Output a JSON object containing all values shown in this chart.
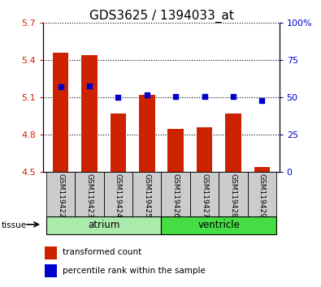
{
  "title": "GDS3625 / 1394033_at",
  "samples": [
    "GSM119422",
    "GSM119423",
    "GSM119424",
    "GSM119425",
    "GSM119426",
    "GSM119427",
    "GSM119428",
    "GSM119429"
  ],
  "transformed_counts": [
    5.46,
    5.44,
    4.97,
    5.12,
    4.85,
    4.86,
    4.97,
    4.54
  ],
  "percentile_ranks": [
    57,
    58,
    50,
    52,
    51,
    51,
    51,
    48
  ],
  "ylim_left": [
    4.5,
    5.7
  ],
  "ylim_right": [
    0,
    100
  ],
  "yticks_left": [
    4.5,
    4.8,
    5.1,
    5.4,
    5.7
  ],
  "yticks_right": [
    0,
    25,
    50,
    75,
    100
  ],
  "ytick_labels_left": [
    "4.5",
    "4.8",
    "5.1",
    "5.4",
    "5.7"
  ],
  "ytick_labels_right": [
    "0",
    "25",
    "50",
    "75",
    "100%"
  ],
  "groups": [
    {
      "name": "atrium",
      "indices": [
        0,
        1,
        2,
        3
      ],
      "color": "#AAEAAA"
    },
    {
      "name": "ventricle",
      "indices": [
        4,
        5,
        6,
        7
      ],
      "color": "#44DD44"
    }
  ],
  "bar_color": "#CC2200",
  "dot_color": "#0000CC",
  "bar_bottom": 4.5,
  "title_fontsize": 11,
  "axis_label_color_left": "#CC2200",
  "axis_label_color_right": "#0000CC",
  "tick_area_color": "#CCCCCC",
  "tissue_label": "tissue",
  "legend_items": [
    "transformed count",
    "percentile rank within the sample"
  ],
  "legend_colors": [
    "#CC2200",
    "#0000CC"
  ]
}
